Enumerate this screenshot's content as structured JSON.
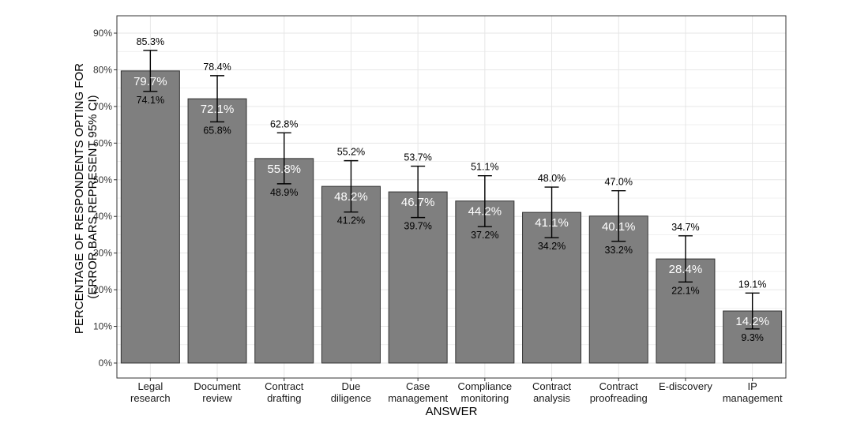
{
  "chart_data": {
    "type": "bar",
    "title": "",
    "xlabel": "ANSWER",
    "ylabel": [
      "PERCENTAGE OF RESPONDENTS OPTING FOR",
      "(ERROR BARS REPRESENT 95% CI)"
    ],
    "ylim": [
      0,
      0.9
    ],
    "yticks": [
      "0%",
      "10%",
      "20%",
      "30%",
      "40%",
      "50%",
      "60%",
      "70%",
      "80%",
      "90%"
    ],
    "grid": true,
    "categories": [
      [
        "Legal",
        "research"
      ],
      [
        "Document",
        "review"
      ],
      [
        "Contract",
        "drafting"
      ],
      [
        "Due",
        "diligence"
      ],
      [
        "Case",
        "management"
      ],
      [
        "Compliance",
        "monitoring"
      ],
      [
        "Contract",
        "analysis"
      ],
      [
        "Contract",
        "proofreading"
      ],
      [
        "E-discovery"
      ],
      [
        "IP",
        "management"
      ]
    ],
    "values": [
      0.797,
      0.721,
      0.558,
      0.482,
      0.467,
      0.442,
      0.411,
      0.401,
      0.284,
      0.142
    ],
    "ci_upper": [
      0.853,
      0.784,
      0.628,
      0.552,
      0.537,
      0.511,
      0.48,
      0.47,
      0.347,
      0.191
    ],
    "ci_lower": [
      0.741,
      0.658,
      0.489,
      0.412,
      0.397,
      0.372,
      0.342,
      0.332,
      0.221,
      0.093
    ],
    "value_labels": [
      "79.7%",
      "72.1%",
      "55.8%",
      "48.2%",
      "46.7%",
      "44.2%",
      "41.1%",
      "40.1%",
      "28.4%",
      "14.2%"
    ],
    "upper_labels": [
      "85.3%",
      "78.4%",
      "62.8%",
      "55.2%",
      "53.7%",
      "51.1%",
      "48.0%",
      "47.0%",
      "34.7%",
      "19.1%"
    ],
    "lower_labels": [
      "74.1%",
      "65.8%",
      "48.9%",
      "41.2%",
      "39.7%",
      "37.2%",
      "34.2%",
      "33.2%",
      "22.1%",
      "9.3%"
    ],
    "colors": {
      "bar": "#7f7f7f",
      "bar_stroke": "#333333",
      "grid": "#e6e6e6",
      "panel_border": "#333333"
    }
  }
}
